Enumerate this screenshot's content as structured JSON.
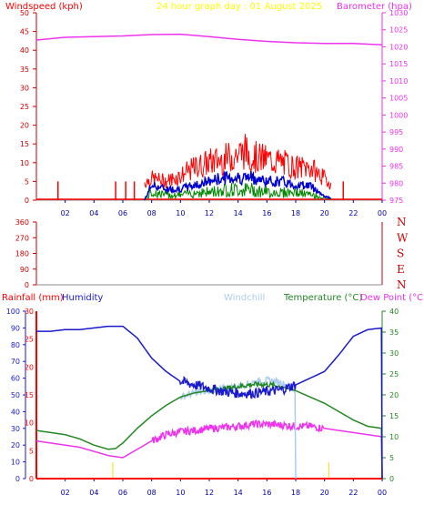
{
  "colors": {
    "wind": "#ff0000",
    "gust": "#ff0000",
    "avg_wind": "#0000cc",
    "gust_green": "#008800",
    "barometer": "#ee33ee",
    "title": "#ffff00",
    "humidity": "#1a1acc",
    "windchill": "#aaccee",
    "temperature": "#228822",
    "dewpoint": "#ee33ee",
    "rainfall": "#ff0000",
    "compass": "#cc0000",
    "axis_hours": "#0000aa"
  },
  "chart_data": [
    {
      "type": "line",
      "title": "24 hour graph day : 01 August 2025",
      "ylabel_left": "Windspeed (kph)",
      "ylabel_right": "Barometer (hpa)",
      "x_ticks": [
        "02",
        "04",
        "06",
        "08",
        "10",
        "12",
        "14",
        "16",
        "18",
        "20",
        "22",
        "00"
      ],
      "xlim_hours": [
        0,
        24
      ],
      "y_left_ticks": [
        "0",
        "5",
        "10",
        "15",
        "20",
        "25",
        "30",
        "35",
        "40",
        "45",
        "50"
      ],
      "ylim_left": [
        0,
        50
      ],
      "y_right_ticks": [
        "975",
        "980",
        "985",
        "990",
        "995",
        "1000",
        "1005",
        "1010",
        "1015",
        "1020",
        "1025",
        "1030"
      ],
      "ylim_right": [
        975,
        1030
      ],
      "grid": false,
      "series": [
        {
          "key": "barometer",
          "x": [
            0,
            2,
            4,
            6,
            8,
            10,
            12,
            14,
            16,
            18,
            20,
            22,
            24
          ],
          "y": [
            1022.0,
            1022.8,
            1023.0,
            1023.2,
            1023.6,
            1023.7,
            1023.0,
            1022.2,
            1021.6,
            1021.2,
            1021.0,
            1021.0,
            1020.6
          ]
        },
        {
          "key": "wind_gust",
          "x": [
            0,
            2,
            4,
            6,
            7,
            8,
            9,
            10,
            11,
            12,
            13,
            14,
            14.5,
            15,
            16,
            17,
            18,
            19,
            20,
            21,
            22,
            24
          ],
          "y": [
            0,
            5,
            0,
            5,
            5,
            8,
            7,
            9,
            12,
            14,
            15,
            17,
            18,
            16,
            15,
            14,
            12,
            12,
            8,
            3,
            0,
            0
          ]
        },
        {
          "key": "wind_avg",
          "x": [
            0,
            7.5,
            8,
            9,
            10,
            11,
            12,
            13,
            14,
            15,
            16,
            17,
            18,
            19,
            20,
            21,
            24
          ],
          "y": [
            0,
            0,
            4,
            3,
            3,
            4,
            5,
            6,
            6,
            6,
            5,
            5,
            4,
            4,
            1,
            0,
            0
          ]
        },
        {
          "key": "wind_green",
          "x": [
            0,
            7.5,
            8,
            9,
            10,
            11,
            12,
            13,
            14,
            15,
            16,
            17,
            18,
            19,
            20,
            21,
            24
          ],
          "y": [
            0,
            0,
            3,
            2,
            2,
            3,
            3,
            4,
            4,
            4,
            3,
            3,
            3,
            2,
            1,
            0,
            0
          ]
        }
      ]
    },
    {
      "type": "scatter",
      "title": "",
      "y_ticks": [
        "0",
        "90",
        "180",
        "270",
        "360"
      ],
      "ylim": [
        0,
        360
      ],
      "x_ticks": [],
      "compass_labels": [
        "N",
        "W",
        "S",
        "E",
        "N"
      ],
      "series": []
    },
    {
      "type": "line",
      "title": "",
      "labels": [
        "Rainfall (mm)",
        "Humidity",
        "Windchill",
        "Temperature (°C)",
        "Dew Point (°C)"
      ],
      "x_ticks": [
        "02",
        "04",
        "06",
        "08",
        "10",
        "12",
        "14",
        "16",
        "18",
        "20",
        "22",
        "00"
      ],
      "xlim_hours": [
        0,
        24
      ],
      "y_humidity_ticks": [
        "0",
        "10",
        "20",
        "30",
        "40",
        "50",
        "60",
        "70",
        "80",
        "90",
        "100"
      ],
      "ylim_humidity": [
        0,
        100
      ],
      "y_rain_ticks": [
        "0",
        "5",
        "10",
        "15",
        "20",
        "25",
        "30"
      ],
      "ylim_rain": [
        0,
        30
      ],
      "y_temp_ticks": [
        "0",
        "5",
        "10",
        "15",
        "20",
        "25",
        "30",
        "35",
        "40"
      ],
      "ylim_temp": [
        0,
        40
      ],
      "series": [
        {
          "key": "humidity",
          "x": [
            0,
            1,
            2,
            3,
            4,
            5,
            6,
            7,
            8,
            9,
            10,
            11,
            12,
            13,
            14,
            15,
            16,
            17,
            18,
            19,
            20,
            21,
            22,
            23,
            24
          ],
          "y": [
            88,
            88,
            89,
            89,
            90,
            91,
            91,
            84,
            72,
            64,
            58,
            56,
            54,
            52,
            51,
            51,
            52,
            53,
            56,
            60,
            64,
            74,
            85,
            89,
            90
          ]
        },
        {
          "key": "temperature",
          "x": [
            0,
            1,
            2,
            3,
            4,
            5,
            5.5,
            6,
            7,
            8,
            9,
            10,
            11,
            12,
            13,
            14,
            15,
            16,
            17,
            18,
            19,
            20,
            21,
            22,
            23,
            24
          ],
          "y": [
            11.5,
            11,
            10.5,
            9.5,
            8,
            7,
            7.2,
            8.5,
            12,
            15,
            17.5,
            19.5,
            20.5,
            21,
            21.5,
            22,
            22.5,
            22.5,
            22,
            21,
            19.5,
            18,
            16,
            14,
            12.5,
            12
          ]
        },
        {
          "key": "dewpoint",
          "x": [
            0,
            1,
            2,
            3,
            4,
            5,
            6,
            7,
            8,
            9,
            10,
            11,
            12,
            13,
            14,
            15,
            16,
            17,
            18,
            19,
            20,
            21,
            22,
            23,
            24
          ],
          "y": [
            9,
            8.5,
            8,
            7.5,
            6.5,
            5.5,
            5,
            7,
            9,
            10.5,
            11.2,
            11.5,
            12,
            12.2,
            12.5,
            13,
            13,
            12.8,
            12.5,
            12.5,
            12,
            11.5,
            11,
            10.5,
            10
          ]
        },
        {
          "key": "windchill",
          "x": [
            10,
            11,
            12,
            13,
            14,
            15,
            16,
            17,
            18
          ],
          "y": [
            19.5,
            20.5,
            21,
            21.5,
            22,
            23,
            23.5,
            23,
            21
          ]
        },
        {
          "key": "rainfall",
          "x": [
            0,
            24
          ],
          "y": [
            0,
            0
          ]
        }
      ]
    }
  ]
}
